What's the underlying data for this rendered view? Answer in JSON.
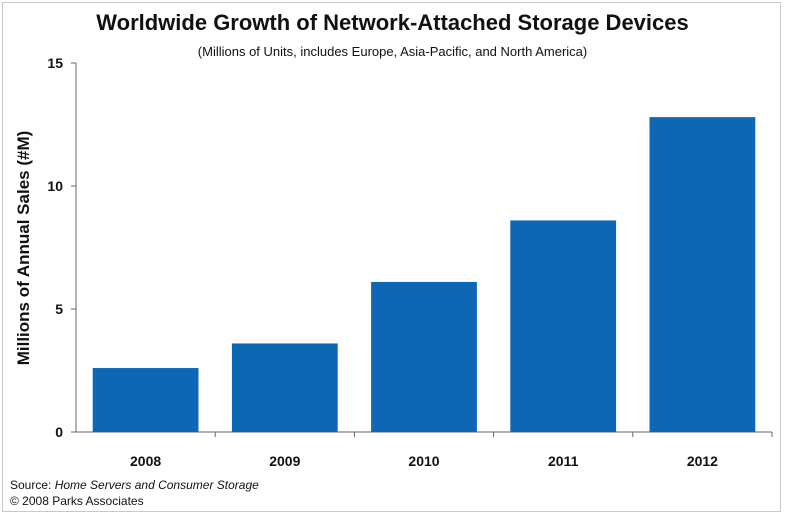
{
  "chart_data": {
    "type": "bar",
    "title": "Worldwide Growth of Network-Attached Storage Devices",
    "subtitle": "(Millions of Units, includes Europe, Asia-Pacific, and North America)",
    "xlabel": "",
    "ylabel": "Millions of Annual Sales (#M)",
    "categories": [
      "2008",
      "2009",
      "2010",
      "2011",
      "2012"
    ],
    "values": [
      2.6,
      3.6,
      6.1,
      8.6,
      12.8
    ],
    "ylim": [
      0,
      15
    ],
    "yticks": [
      "0",
      "5",
      "10",
      "15"
    ],
    "grid": false,
    "bar_color": "#0d67b5"
  },
  "source": {
    "prefix": "Source:",
    "text": "Home Servers and Consumer Storage"
  },
  "copyright": "© 2008 Parks Associates"
}
